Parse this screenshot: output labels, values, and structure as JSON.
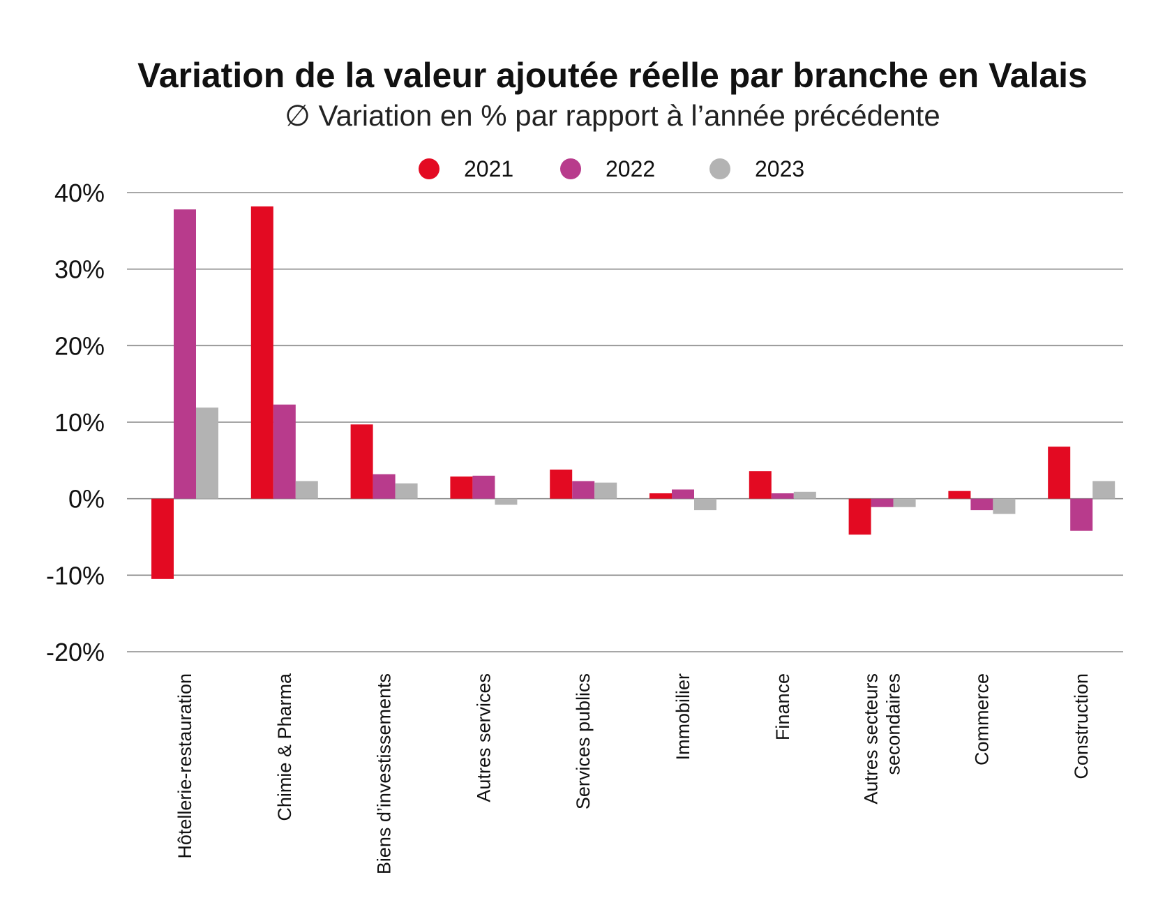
{
  "chart_data": {
    "type": "bar",
    "title": "Variation de la valeur ajoutée réelle par branche en Valais",
    "subtitle": "∅ Variation en % par rapport à l’année précédente",
    "categories": [
      [
        "Hôtellerie-restauration"
      ],
      [
        "Chimie & Pharma"
      ],
      [
        "Biens d’investissements"
      ],
      [
        "Autres services"
      ],
      [
        "Services publics"
      ],
      [
        "Immobilier"
      ],
      [
        "Finance"
      ],
      [
        "Autres secteurs",
        "secondaires"
      ],
      [
        "Commerce"
      ],
      [
        "Construction"
      ]
    ],
    "series": [
      {
        "name": "2021",
        "color": "#e30a22",
        "values": [
          -10.5,
          38.2,
          9.7,
          2.9,
          3.8,
          0.7,
          3.6,
          -4.7,
          1.0,
          6.8
        ]
      },
      {
        "name": "2022",
        "color": "#b83b8c",
        "values": [
          37.8,
          12.3,
          3.2,
          3.0,
          2.3,
          1.2,
          0.7,
          -1.1,
          -1.5,
          -4.2
        ]
      },
      {
        "name": "2023",
        "color": "#b3b3b3",
        "values": [
          11.9,
          2.3,
          2.0,
          -0.8,
          2.1,
          -1.5,
          0.9,
          -1.1,
          -2.0,
          2.3
        ]
      }
    ],
    "ylim": [
      -20,
      40
    ],
    "yticks": [
      40,
      30,
      20,
      10,
      0,
      -10,
      -20
    ],
    "ytick_labels": [
      "40%",
      "30%",
      "20%",
      "10%",
      "0%",
      "-10%",
      "-20%"
    ],
    "grid": true,
    "legend": "top-center"
  }
}
